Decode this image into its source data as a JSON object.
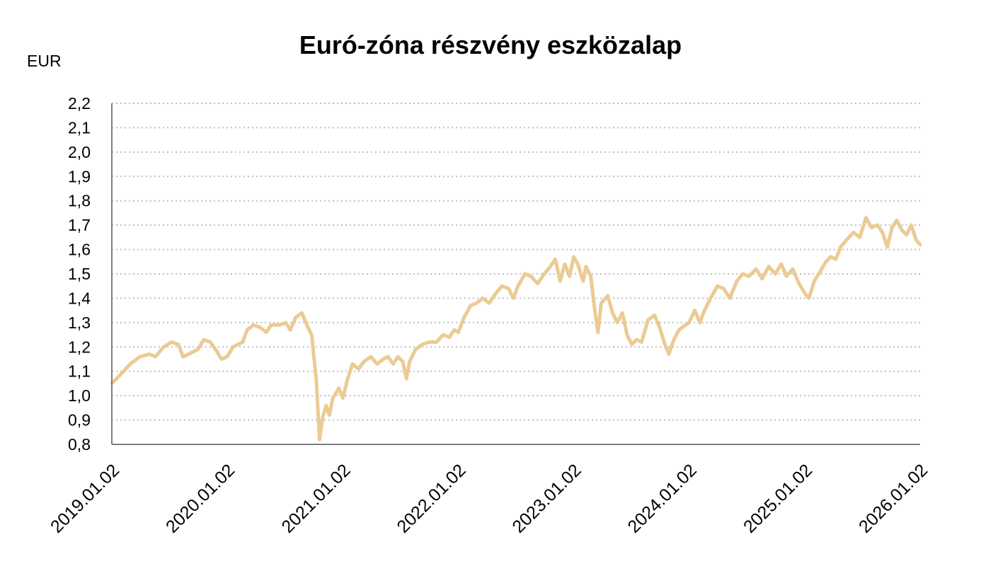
{
  "chart_data": {
    "type": "line",
    "title": "Euró-zóna részvény eszközalap",
    "unit_label": "EUR",
    "xlabel": "",
    "ylabel": "",
    "ylim": [
      0.8,
      2.2
    ],
    "y_ticks": [
      "0,8",
      "0,9",
      "1,0",
      "1,1",
      "1,2",
      "1,3",
      "1,4",
      "1,5",
      "1,6",
      "1,7",
      "1,8",
      "1,9",
      "2,0",
      "2,1",
      "2,2"
    ],
    "x_ticks": [
      "2019.01.02",
      "2020.01.02",
      "2021.01.02",
      "2022.01.02",
      "2023.01.02",
      "2024.01.02",
      "2025.01.02",
      "2026.01.02"
    ],
    "x_range": [
      "2019.01.02",
      "2026.01.02"
    ],
    "grid": "horizontal dotted",
    "legend": "none",
    "line_color": "#EBCB94",
    "series": [
      {
        "points": [
          [
            "2019.01.02",
            1.05
          ],
          [
            "2019.02.01",
            1.09
          ],
          [
            "2019.03.01",
            1.13
          ],
          [
            "2019.04.01",
            1.16
          ],
          [
            "2019.05.01",
            1.17
          ],
          [
            "2019.05.20",
            1.16
          ],
          [
            "2019.06.15",
            1.2
          ],
          [
            "2019.07.10",
            1.22
          ],
          [
            "2019.08.01",
            1.21
          ],
          [
            "2019.08.15",
            1.16
          ],
          [
            "2019.09.01",
            1.17
          ],
          [
            "2019.10.01",
            1.19
          ],
          [
            "2019.10.20",
            1.23
          ],
          [
            "2019.11.10",
            1.22
          ],
          [
            "2019.12.01",
            1.18
          ],
          [
            "2019.12.15",
            1.15
          ],
          [
            "2020.01.02",
            1.16
          ],
          [
            "2020.01.20",
            1.2
          ],
          [
            "2020.02.05",
            1.21
          ],
          [
            "2020.02.20",
            1.22
          ],
          [
            "2020.03.05",
            1.27
          ],
          [
            "2020.03.25",
            1.29
          ],
          [
            "2020.04.15",
            1.28
          ],
          [
            "2020.05.05",
            1.26
          ],
          [
            "2020.05.20",
            1.29
          ],
          [
            "2020.06.15",
            1.29
          ],
          [
            "2020.07.05",
            1.3
          ],
          [
            "2020.07.20",
            1.27
          ],
          [
            "2020.08.05",
            1.32
          ],
          [
            "2020.08.25",
            1.34
          ],
          [
            "2020.09.10",
            1.29
          ],
          [
            "2020.09.25",
            1.25
          ],
          [
            "2020.10.10",
            1.06
          ],
          [
            "2020.10.20",
            0.82
          ],
          [
            "2020.10.30",
            0.91
          ],
          [
            "2020.11.10",
            0.96
          ],
          [
            "2020.11.20",
            0.92
          ],
          [
            "2020.12.01",
            0.99
          ],
          [
            "2020.12.20",
            1.03
          ],
          [
            "2021.01.02",
            0.99
          ],
          [
            "2021.01.15",
            1.06
          ],
          [
            "2021.02.01",
            1.13
          ],
          [
            "2021.02.20",
            1.11
          ],
          [
            "2021.03.10",
            1.14
          ],
          [
            "2021.04.01",
            1.16
          ],
          [
            "2021.04.20",
            1.13
          ],
          [
            "2021.05.10",
            1.15
          ],
          [
            "2021.05.25",
            1.16
          ],
          [
            "2021.06.10",
            1.13
          ],
          [
            "2021.06.25",
            1.16
          ],
          [
            "2021.07.10",
            1.14
          ],
          [
            "2021.07.22",
            1.07
          ],
          [
            "2021.08.01",
            1.14
          ],
          [
            "2021.08.20",
            1.19
          ],
          [
            "2021.09.10",
            1.21
          ],
          [
            "2021.10.01",
            1.22
          ],
          [
            "2021.10.25",
            1.22
          ],
          [
            "2021.11.15",
            1.25
          ],
          [
            "2021.12.05",
            1.24
          ],
          [
            "2021.12.20",
            1.27
          ],
          [
            "2022.01.02",
            1.26
          ],
          [
            "2022.01.20",
            1.32
          ],
          [
            "2022.02.10",
            1.37
          ],
          [
            "2022.03.01",
            1.38
          ],
          [
            "2022.03.20",
            1.4
          ],
          [
            "2022.04.10",
            1.38
          ],
          [
            "2022.05.01",
            1.42
          ],
          [
            "2022.05.20",
            1.45
          ],
          [
            "2022.06.10",
            1.44
          ],
          [
            "2022.06.25",
            1.4
          ],
          [
            "2022.07.10",
            1.45
          ],
          [
            "2022.08.01",
            1.5
          ],
          [
            "2022.08.20",
            1.49
          ],
          [
            "2022.09.10",
            1.46
          ],
          [
            "2022.10.01",
            1.5
          ],
          [
            "2022.10.20",
            1.53
          ],
          [
            "2022.11.05",
            1.56
          ],
          [
            "2022.11.20",
            1.47
          ],
          [
            "2022.12.05",
            1.54
          ],
          [
            "2022.12.20",
            1.49
          ],
          [
            "2023.01.02",
            1.57
          ],
          [
            "2023.01.15",
            1.54
          ],
          [
            "2023.02.01",
            1.47
          ],
          [
            "2023.02.10",
            1.53
          ],
          [
            "2023.02.25",
            1.49
          ],
          [
            "2023.03.10",
            1.35
          ],
          [
            "2023.03.20",
            1.26
          ],
          [
            "2023.03.30",
            1.38
          ],
          [
            "2023.04.20",
            1.41
          ],
          [
            "2023.05.05",
            1.34
          ],
          [
            "2023.05.20",
            1.3
          ],
          [
            "2023.06.05",
            1.34
          ],
          [
            "2023.06.20",
            1.25
          ],
          [
            "2023.07.05",
            1.21
          ],
          [
            "2023.07.20",
            1.23
          ],
          [
            "2023.08.05",
            1.22
          ],
          [
            "2023.08.25",
            1.31
          ],
          [
            "2023.09.15",
            1.33
          ],
          [
            "2023.10.01",
            1.28
          ],
          [
            "2023.10.15",
            1.22
          ],
          [
            "2023.10.30",
            1.17
          ],
          [
            "2023.11.15",
            1.23
          ],
          [
            "2023.12.01",
            1.27
          ],
          [
            "2024.01.02",
            1.3
          ],
          [
            "2024.01.20",
            1.35
          ],
          [
            "2024.02.05",
            1.3
          ],
          [
            "2024.02.20",
            1.35
          ],
          [
            "2024.03.10",
            1.4
          ],
          [
            "2024.04.01",
            1.45
          ],
          [
            "2024.04.20",
            1.44
          ],
          [
            "2024.05.10",
            1.4
          ],
          [
            "2024.06.01",
            1.47
          ],
          [
            "2024.06.20",
            1.5
          ],
          [
            "2024.07.10",
            1.49
          ],
          [
            "2024.08.01",
            1.52
          ],
          [
            "2024.08.20",
            1.48
          ],
          [
            "2024.09.10",
            1.53
          ],
          [
            "2024.10.01",
            1.5
          ],
          [
            "2024.10.20",
            1.54
          ],
          [
            "2024.11.05",
            1.49
          ],
          [
            "2024.11.25",
            1.52
          ],
          [
            "2024.12.15",
            1.46
          ],
          [
            "2025.01.02",
            1.42
          ],
          [
            "2025.01.15",
            1.4
          ],
          [
            "2025.02.01",
            1.47
          ],
          [
            "2025.02.20",
            1.51
          ],
          [
            "2025.03.10",
            1.55
          ],
          [
            "2025.03.25",
            1.57
          ],
          [
            "2025.04.10",
            1.56
          ],
          [
            "2025.04.25",
            1.61
          ],
          [
            "2025.05.15",
            1.64
          ],
          [
            "2025.06.05",
            1.67
          ],
          [
            "2025.06.25",
            1.65
          ],
          [
            "2025.07.15",
            1.73
          ],
          [
            "2025.08.01",
            1.69
          ],
          [
            "2025.08.20",
            1.7
          ],
          [
            "2025.09.05",
            1.67
          ],
          [
            "2025.09.20",
            1.61
          ],
          [
            "2025.10.05",
            1.69
          ],
          [
            "2025.10.20",
            1.72
          ],
          [
            "2025.11.05",
            1.68
          ],
          [
            "2025.11.20",
            1.66
          ],
          [
            "2025.12.05",
            1.7
          ],
          [
            "2025.12.20",
            1.64
          ],
          [
            "2026.01.02",
            1.62
          ]
        ]
      }
    ]
  }
}
